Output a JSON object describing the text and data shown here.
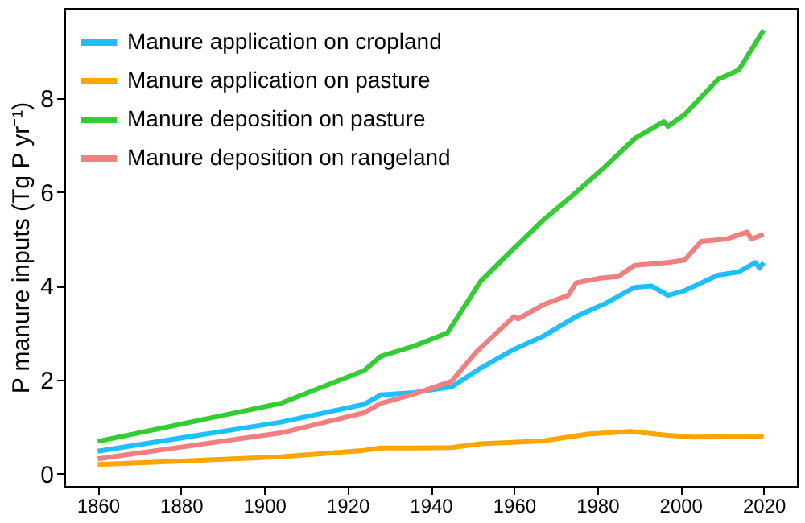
{
  "chart_data": {
    "type": "line",
    "ylabel": "P manure inputs (Tg P yr⁻¹)",
    "xlim": [
      1852,
      2028
    ],
    "xticks": [
      1860,
      1880,
      1900,
      1920,
      1940,
      1960,
      1980,
      2000,
      2020
    ],
    "ylim": [
      -0.26,
      9.92
    ],
    "yticks": [
      0,
      2,
      4,
      6,
      8
    ],
    "grid": false,
    "legend": "top left",
    "marker": "none",
    "line_style": "solid",
    "series": [
      {
        "name": "Manure application on cropland",
        "color": "#1fbfff",
        "x": [
          1860,
          1904,
          1924,
          1928,
          1936,
          1945,
          1952,
          1960,
          1967,
          1975,
          1982,
          1989,
          1993,
          1997,
          2001,
          2009,
          2014,
          2018,
          2019,
          2020
        ],
        "values": [
          0.48,
          1.1,
          1.48,
          1.68,
          1.73,
          1.85,
          2.25,
          2.65,
          2.93,
          3.35,
          3.63,
          3.97,
          4.0,
          3.8,
          3.9,
          4.23,
          4.3,
          4.5,
          4.38,
          4.5
        ]
      },
      {
        "name": "Manure application on pasture",
        "color": "#ffa500",
        "x": [
          1860,
          1904,
          1924,
          1928,
          1936,
          1945,
          1952,
          1967,
          1978,
          1988,
          1997,
          2003,
          2020
        ],
        "values": [
          0.2,
          0.36,
          0.5,
          0.55,
          0.55,
          0.56,
          0.64,
          0.7,
          0.85,
          0.9,
          0.82,
          0.78,
          0.8
        ]
      },
      {
        "name": "Manure deposition on pasture",
        "color": "#33cc33",
        "x": [
          1860,
          1904,
          1924,
          1928,
          1936,
          1944,
          1952,
          1960,
          1967,
          1975,
          1982,
          1989,
          1996,
          1997,
          2001,
          2009,
          2014,
          2020
        ],
        "values": [
          0.69,
          1.5,
          2.2,
          2.5,
          2.72,
          3.0,
          4.1,
          4.8,
          5.4,
          6.0,
          6.55,
          7.14,
          7.5,
          7.4,
          7.65,
          8.4,
          8.6,
          9.45
        ]
      },
      {
        "name": "Manure deposition on rangeland",
        "color": "#f08080",
        "x": [
          1860,
          1904,
          1924,
          1928,
          1936,
          1945,
          1951,
          1960,
          1961,
          1967,
          1973,
          1975,
          1981,
          1985,
          1989,
          1997,
          2001,
          2005,
          2011,
          2016,
          2017,
          2020
        ],
        "values": [
          0.32,
          0.87,
          1.3,
          1.5,
          1.7,
          1.97,
          2.6,
          3.35,
          3.3,
          3.6,
          3.8,
          4.07,
          4.17,
          4.2,
          4.44,
          4.5,
          4.55,
          4.95,
          5.0,
          5.15,
          5.0,
          5.1
        ]
      }
    ]
  }
}
